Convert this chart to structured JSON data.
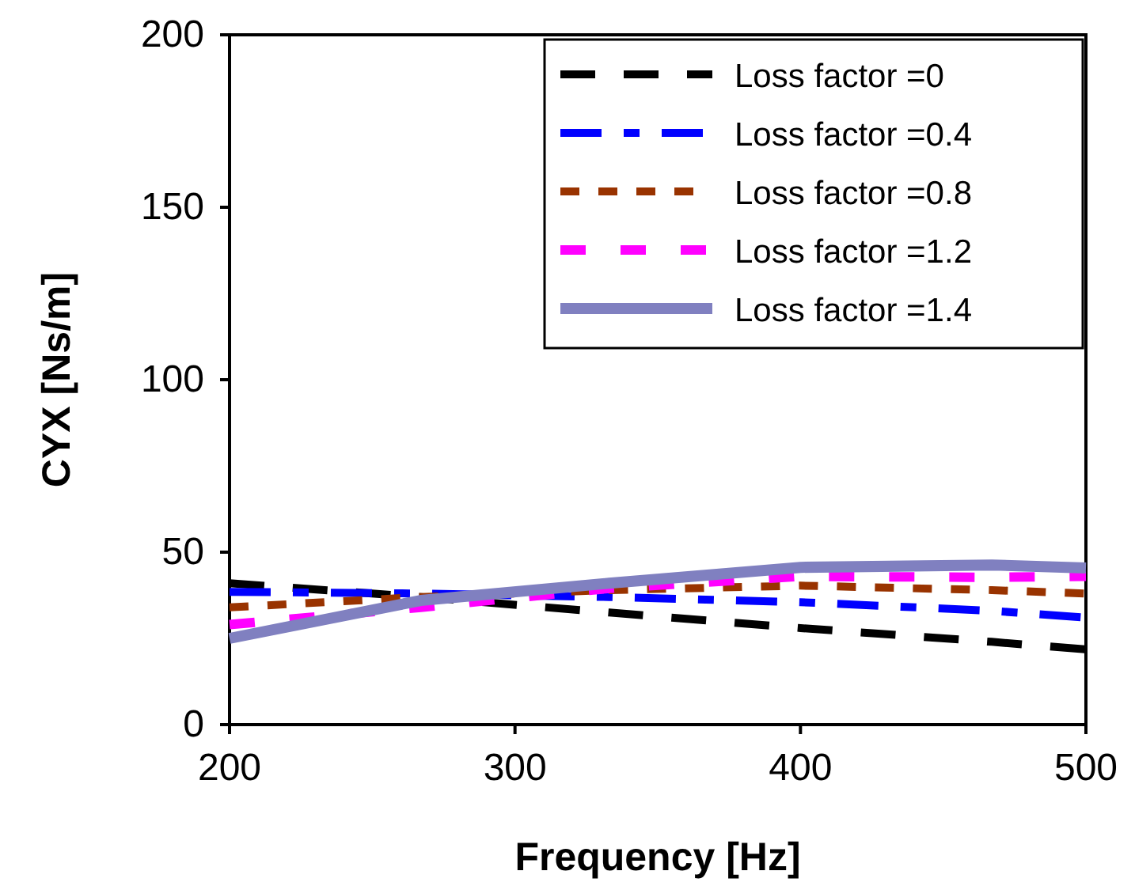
{
  "chart_data": {
    "type": "line",
    "xlabel": "Frequency [Hz]",
    "ylabel": "CYX [Ns/m]",
    "xlim": [
      200,
      500
    ],
    "xticks": [
      200,
      300,
      400,
      500
    ],
    "ylim": [
      0,
      200
    ],
    "yticks": [
      0,
      50,
      100,
      150,
      200
    ],
    "grid": false,
    "legend": "top right",
    "marker": "none",
    "x": [
      200,
      267,
      333,
      400,
      467,
      500
    ],
    "series": [
      {
        "name": "Loss factor =0",
        "color": "#000000",
        "line_style": "dashed",
        "values": [
          41,
          37,
          32.5,
          28,
          24,
          21.8
        ]
      },
      {
        "name": "Loss factor =0.4",
        "color": "#0000ff",
        "line_style": "dashed",
        "values": [
          38.5,
          38,
          37,
          35.5,
          33,
          31
        ]
      },
      {
        "name": "Loss factor =0.8",
        "color": "#993300",
        "line_style": "dotted",
        "values": [
          34,
          37,
          39,
          40.3,
          39,
          38
        ]
      },
      {
        "name": "Loss factor =1.2",
        "color": "#ff00ff",
        "line_style": "dashed",
        "values": [
          29,
          34,
          39.5,
          43,
          42.7,
          43
        ]
      },
      {
        "name": "Loss factor =1.4",
        "color": "#8080c0",
        "line_style": "solid",
        "values": [
          25,
          36,
          41,
          45.6,
          46.3,
          45.4
        ]
      }
    ]
  }
}
